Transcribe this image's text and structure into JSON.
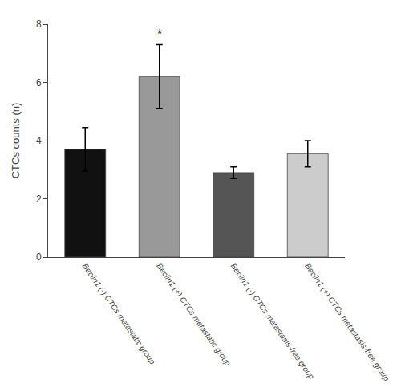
{
  "chart_data": {
    "type": "bar",
    "categories": [
      "Beclin1 (-) CTCs metastatic group",
      "Beclin1 (+) CTCs metastatic group",
      "Beclin1 (-) CTCs metastasis-free group",
      "Beclin1 (+) CTCs metastasis-free group"
    ],
    "values": [
      3.7,
      6.2,
      2.9,
      3.55
    ],
    "errors": [
      0.75,
      1.1,
      0.2,
      0.45
    ],
    "colors": [
      "#111111",
      "#999999",
      "#555555",
      "#cccccc"
    ],
    "ylabel": "CTCs counts (n)",
    "ylim": [
      0,
      8
    ],
    "yticks": [
      0,
      2,
      4,
      6,
      8
    ],
    "annotations": [
      {
        "category": "Beclin1 (+) CTCs metastatic group",
        "text": "*"
      }
    ],
    "grid": false
  }
}
